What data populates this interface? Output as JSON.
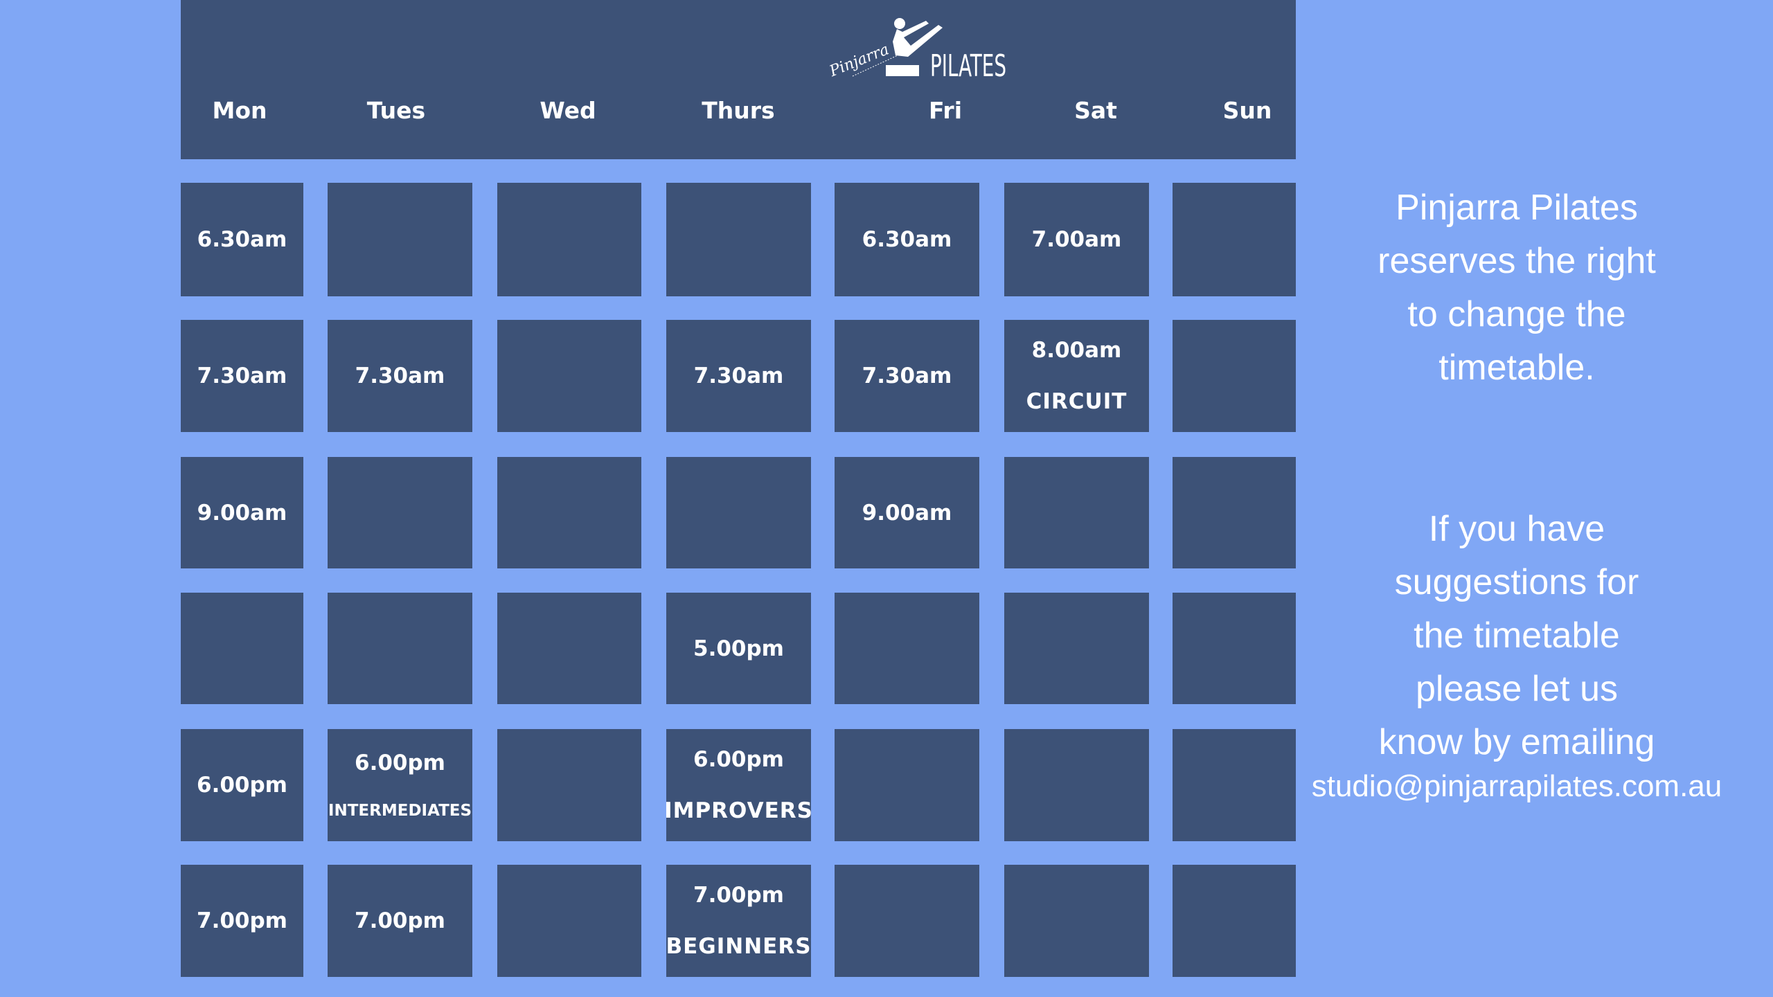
{
  "logo": {
    "script_text": "Pinjarra",
    "word_text": "PILATES"
  },
  "colors": {
    "background": "#80a7f5",
    "panel": "#3d5277",
    "text": "#ffffff"
  },
  "days": [
    "Mon",
    "Tues",
    "Wed",
    "Thurs",
    "Fri",
    "Sat",
    "Sun"
  ],
  "rows": [
    [
      {
        "time": "6.30am"
      },
      {},
      {},
      {},
      {
        "time": "6.30am"
      },
      {
        "time": "7.00am"
      },
      {}
    ],
    [
      {
        "time": "7.30am"
      },
      {
        "time": "7.30am"
      },
      {},
      {
        "time": "7.30am"
      },
      {
        "time": "7.30am"
      },
      {
        "time": "8.00am",
        "label": "CIRCUIT"
      },
      {}
    ],
    [
      {
        "time": "9.00am"
      },
      {},
      {},
      {},
      {
        "time": "9.00am"
      },
      {},
      {}
    ],
    [
      {},
      {},
      {},
      {
        "time": "5.00pm"
      },
      {},
      {},
      {}
    ],
    [
      {
        "time": "6.00pm"
      },
      {
        "time": "6.00pm",
        "label": "INTERMEDIATES"
      },
      {},
      {
        "time": "6.00pm",
        "label": "IMPROVERS"
      },
      {},
      {},
      {}
    ],
    [
      {
        "time": "7.00pm"
      },
      {
        "time": "7.00pm"
      },
      {},
      {
        "time": "7.00pm",
        "label": "BEGINNERS"
      },
      {},
      {},
      {}
    ]
  ],
  "notice": {
    "lines": [
      "Pinjarra Pilates",
      "reserves the right",
      "to change the",
      "timetable."
    ],
    "suggestion_lines": [
      "If you have",
      "suggestions for",
      "the timetable",
      "please let us",
      "know by emailing"
    ],
    "email": "studio@pinjarrapilates.com.au"
  }
}
